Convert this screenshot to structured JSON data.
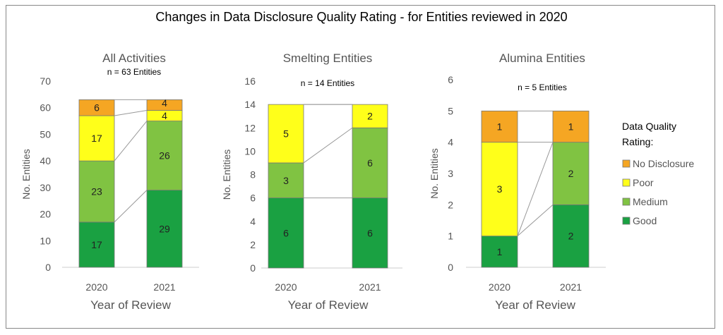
{
  "title": "Changes in Data Disclosure Quality Rating - for Entities reviewed in 2020",
  "legend": {
    "title_lines": [
      "Data Quality",
      "Rating:"
    ],
    "placement": "right",
    "entries": [
      {
        "name": "No Disclosure",
        "color": "#F5A623"
      },
      {
        "name": "Poor",
        "color": "#FFFF1A"
      },
      {
        "name": "Medium",
        "color": "#80C342"
      },
      {
        "name": "Good",
        "color": "#1AA142"
      }
    ]
  },
  "chart_data": [
    {
      "type": "bar",
      "stacked": true,
      "title": "All Activities",
      "annotation": "n = 63 Entities",
      "xlabel": "Year of Review",
      "ylabel": "No. Entities",
      "categories": [
        "2020",
        "2021"
      ],
      "ylim": [
        0,
        70
      ],
      "yticks": [
        0,
        10,
        20,
        30,
        40,
        50,
        60,
        70
      ],
      "series": [
        {
          "name": "Good",
          "values": [
            17,
            29
          ]
        },
        {
          "name": "Medium",
          "values": [
            23,
            26
          ]
        },
        {
          "name": "Poor",
          "values": [
            17,
            4
          ]
        },
        {
          "name": "No Disclosure",
          "values": [
            6,
            4
          ]
        }
      ]
    },
    {
      "type": "bar",
      "stacked": true,
      "title": "Smelting Entities",
      "annotation": "n = 14 Entities",
      "xlabel": "Year of Review",
      "ylabel": "No. Entities",
      "categories": [
        "2020",
        "2021"
      ],
      "ylim": [
        0,
        16
      ],
      "yticks": [
        0,
        2,
        4,
        6,
        8,
        10,
        12,
        14,
        16
      ],
      "series": [
        {
          "name": "Good",
          "values": [
            6,
            6
          ]
        },
        {
          "name": "Medium",
          "values": [
            3,
            6
          ]
        },
        {
          "name": "Poor",
          "values": [
            5,
            2
          ]
        },
        {
          "name": "No Disclosure",
          "values": [
            0,
            0
          ]
        }
      ]
    },
    {
      "type": "bar",
      "stacked": true,
      "title": "Alumina Entities",
      "annotation": "n = 5 Entities",
      "xlabel": "Year of Review",
      "ylabel": "No. Entities",
      "categories": [
        "2020",
        "2021"
      ],
      "ylim": [
        0,
        6
      ],
      "yticks": [
        0,
        1,
        2,
        3,
        4,
        5,
        6
      ],
      "series": [
        {
          "name": "Good",
          "values": [
            1,
            2
          ]
        },
        {
          "name": "Medium",
          "values": [
            0,
            2
          ]
        },
        {
          "name": "Poor",
          "values": [
            3,
            0
          ]
        },
        {
          "name": "No Disclosure",
          "values": [
            1,
            1
          ]
        }
      ]
    }
  ]
}
